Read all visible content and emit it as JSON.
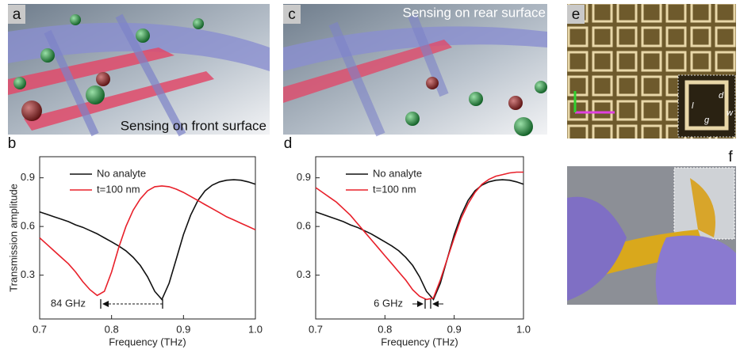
{
  "panels": {
    "a": {
      "label": "a",
      "caption": "Sensing on front surface"
    },
    "c": {
      "label": "c",
      "caption": "Sensing on rear surface"
    },
    "e": {
      "label": "e",
      "inset_labels": [
        "l",
        "d",
        "w",
        "g"
      ]
    },
    "f": {
      "label": "f"
    }
  },
  "chart_data": [
    {
      "type": "line",
      "panel": "b",
      "xlabel": "Frequency (THz)",
      "ylabel": "Transmission amplitude",
      "x": [
        0.7,
        0.71,
        0.72,
        0.73,
        0.74,
        0.75,
        0.76,
        0.77,
        0.78,
        0.79,
        0.8,
        0.81,
        0.82,
        0.83,
        0.84,
        0.85,
        0.86,
        0.87,
        0.88,
        0.89,
        0.9,
        0.91,
        0.92,
        0.93,
        0.94,
        0.95,
        0.96,
        0.97,
        0.98,
        0.99,
        1.0
      ],
      "xlim": [
        0.7,
        1.0
      ],
      "xticks": [
        0.7,
        0.8,
        0.9,
        {
          "value": 1.0,
          "label": "1.0"
        }
      ],
      "ylim": [
        0.03,
        1.03
      ],
      "yticks": [
        0.3,
        0.6,
        0.9
      ],
      "legend": "upper left",
      "series": [
        {
          "name": "No analyte",
          "color": "#111111",
          "values": [
            0.69,
            0.675,
            0.66,
            0.645,
            0.63,
            0.61,
            0.595,
            0.575,
            0.555,
            0.53,
            0.505,
            0.48,
            0.45,
            0.41,
            0.36,
            0.29,
            0.2,
            0.15,
            0.25,
            0.4,
            0.55,
            0.67,
            0.76,
            0.82,
            0.855,
            0.875,
            0.885,
            0.888,
            0.885,
            0.875,
            0.86
          ]
        },
        {
          "name": "t=100 nm",
          "color": "#e8202a",
          "values": [
            0.53,
            0.49,
            0.45,
            0.41,
            0.37,
            0.32,
            0.26,
            0.21,
            0.175,
            0.2,
            0.32,
            0.47,
            0.6,
            0.7,
            0.77,
            0.82,
            0.845,
            0.85,
            0.845,
            0.83,
            0.81,
            0.785,
            0.76,
            0.735,
            0.71,
            0.685,
            0.66,
            0.64,
            0.62,
            0.6,
            0.58
          ]
        }
      ],
      "annotation": "84 GHz"
    },
    {
      "type": "line",
      "panel": "d",
      "xlabel": "Frequency (THz)",
      "x": [
        0.7,
        0.71,
        0.72,
        0.73,
        0.74,
        0.75,
        0.76,
        0.77,
        0.78,
        0.79,
        0.8,
        0.81,
        0.82,
        0.83,
        0.84,
        0.85,
        0.86,
        0.87,
        0.88,
        0.89,
        0.9,
        0.91,
        0.92,
        0.93,
        0.94,
        0.95,
        0.96,
        0.97,
        0.98,
        0.99,
        1.0
      ],
      "xlim": [
        0.7,
        1.0
      ],
      "xticks": [
        0.7,
        0.8,
        0.9,
        {
          "value": 1.0,
          "label": "1.0"
        }
      ],
      "ylim": [
        0.03,
        1.03
      ],
      "yticks": [
        0.3,
        0.6,
        0.9
      ],
      "legend": "upper left",
      "series": [
        {
          "name": "No analyte",
          "color": "#111111",
          "values": [
            0.69,
            0.675,
            0.66,
            0.645,
            0.63,
            0.61,
            0.595,
            0.575,
            0.555,
            0.53,
            0.505,
            0.48,
            0.45,
            0.41,
            0.36,
            0.29,
            0.2,
            0.15,
            0.25,
            0.4,
            0.55,
            0.67,
            0.76,
            0.82,
            0.855,
            0.875,
            0.885,
            0.888,
            0.885,
            0.875,
            0.86
          ]
        },
        {
          "name": "t=100 nm",
          "color": "#e8202a",
          "values": [
            0.84,
            0.81,
            0.78,
            0.75,
            0.71,
            0.67,
            0.62,
            0.57,
            0.52,
            0.47,
            0.42,
            0.37,
            0.32,
            0.27,
            0.21,
            0.17,
            0.15,
            0.16,
            0.27,
            0.4,
            0.53,
            0.65,
            0.74,
            0.81,
            0.86,
            0.89,
            0.91,
            0.92,
            0.93,
            0.935,
            0.935
          ]
        }
      ],
      "annotation": "6 GHz"
    }
  ]
}
